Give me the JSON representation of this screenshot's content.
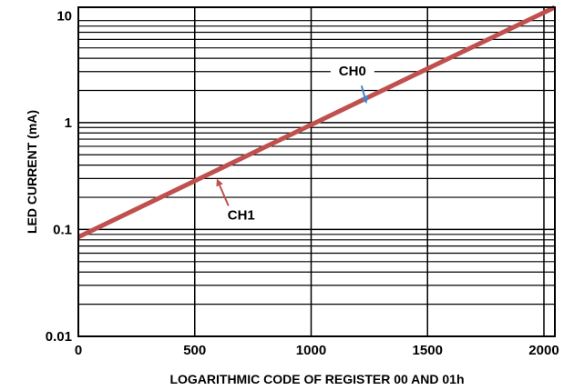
{
  "chart_data": {
    "type": "line",
    "title": "",
    "xlabel": "LOGARITHMIC CODE OF REGISTER 00 AND 01h",
    "ylabel": "LED CURRENT (mA)",
    "xlim": [
      0,
      2047
    ],
    "ylim": [
      0.01,
      12
    ],
    "y_scale": "log",
    "grid": true,
    "x_ticks": [
      0,
      500,
      1000,
      1500,
      2000
    ],
    "x_tick_labels": [
      "0",
      "500",
      "1000",
      "1500",
      "2000"
    ],
    "y_ticks": [
      0.01,
      0.1,
      1,
      10
    ],
    "y_tick_labels": [
      "0.01",
      "0.1",
      "1",
      "10"
    ],
    "line_color": "#c0504d",
    "series": [
      {
        "x": [
          0,
          2047
        ],
        "y": [
          0.085,
          12
        ]
      }
    ],
    "annotations": [
      {
        "text": "CH0",
        "point": [
          1240,
          1.5
        ],
        "color": "#4a86c5"
      },
      {
        "text": "CH1",
        "point": [
          590,
          0.3
        ],
        "color": "#c0504d"
      }
    ]
  }
}
